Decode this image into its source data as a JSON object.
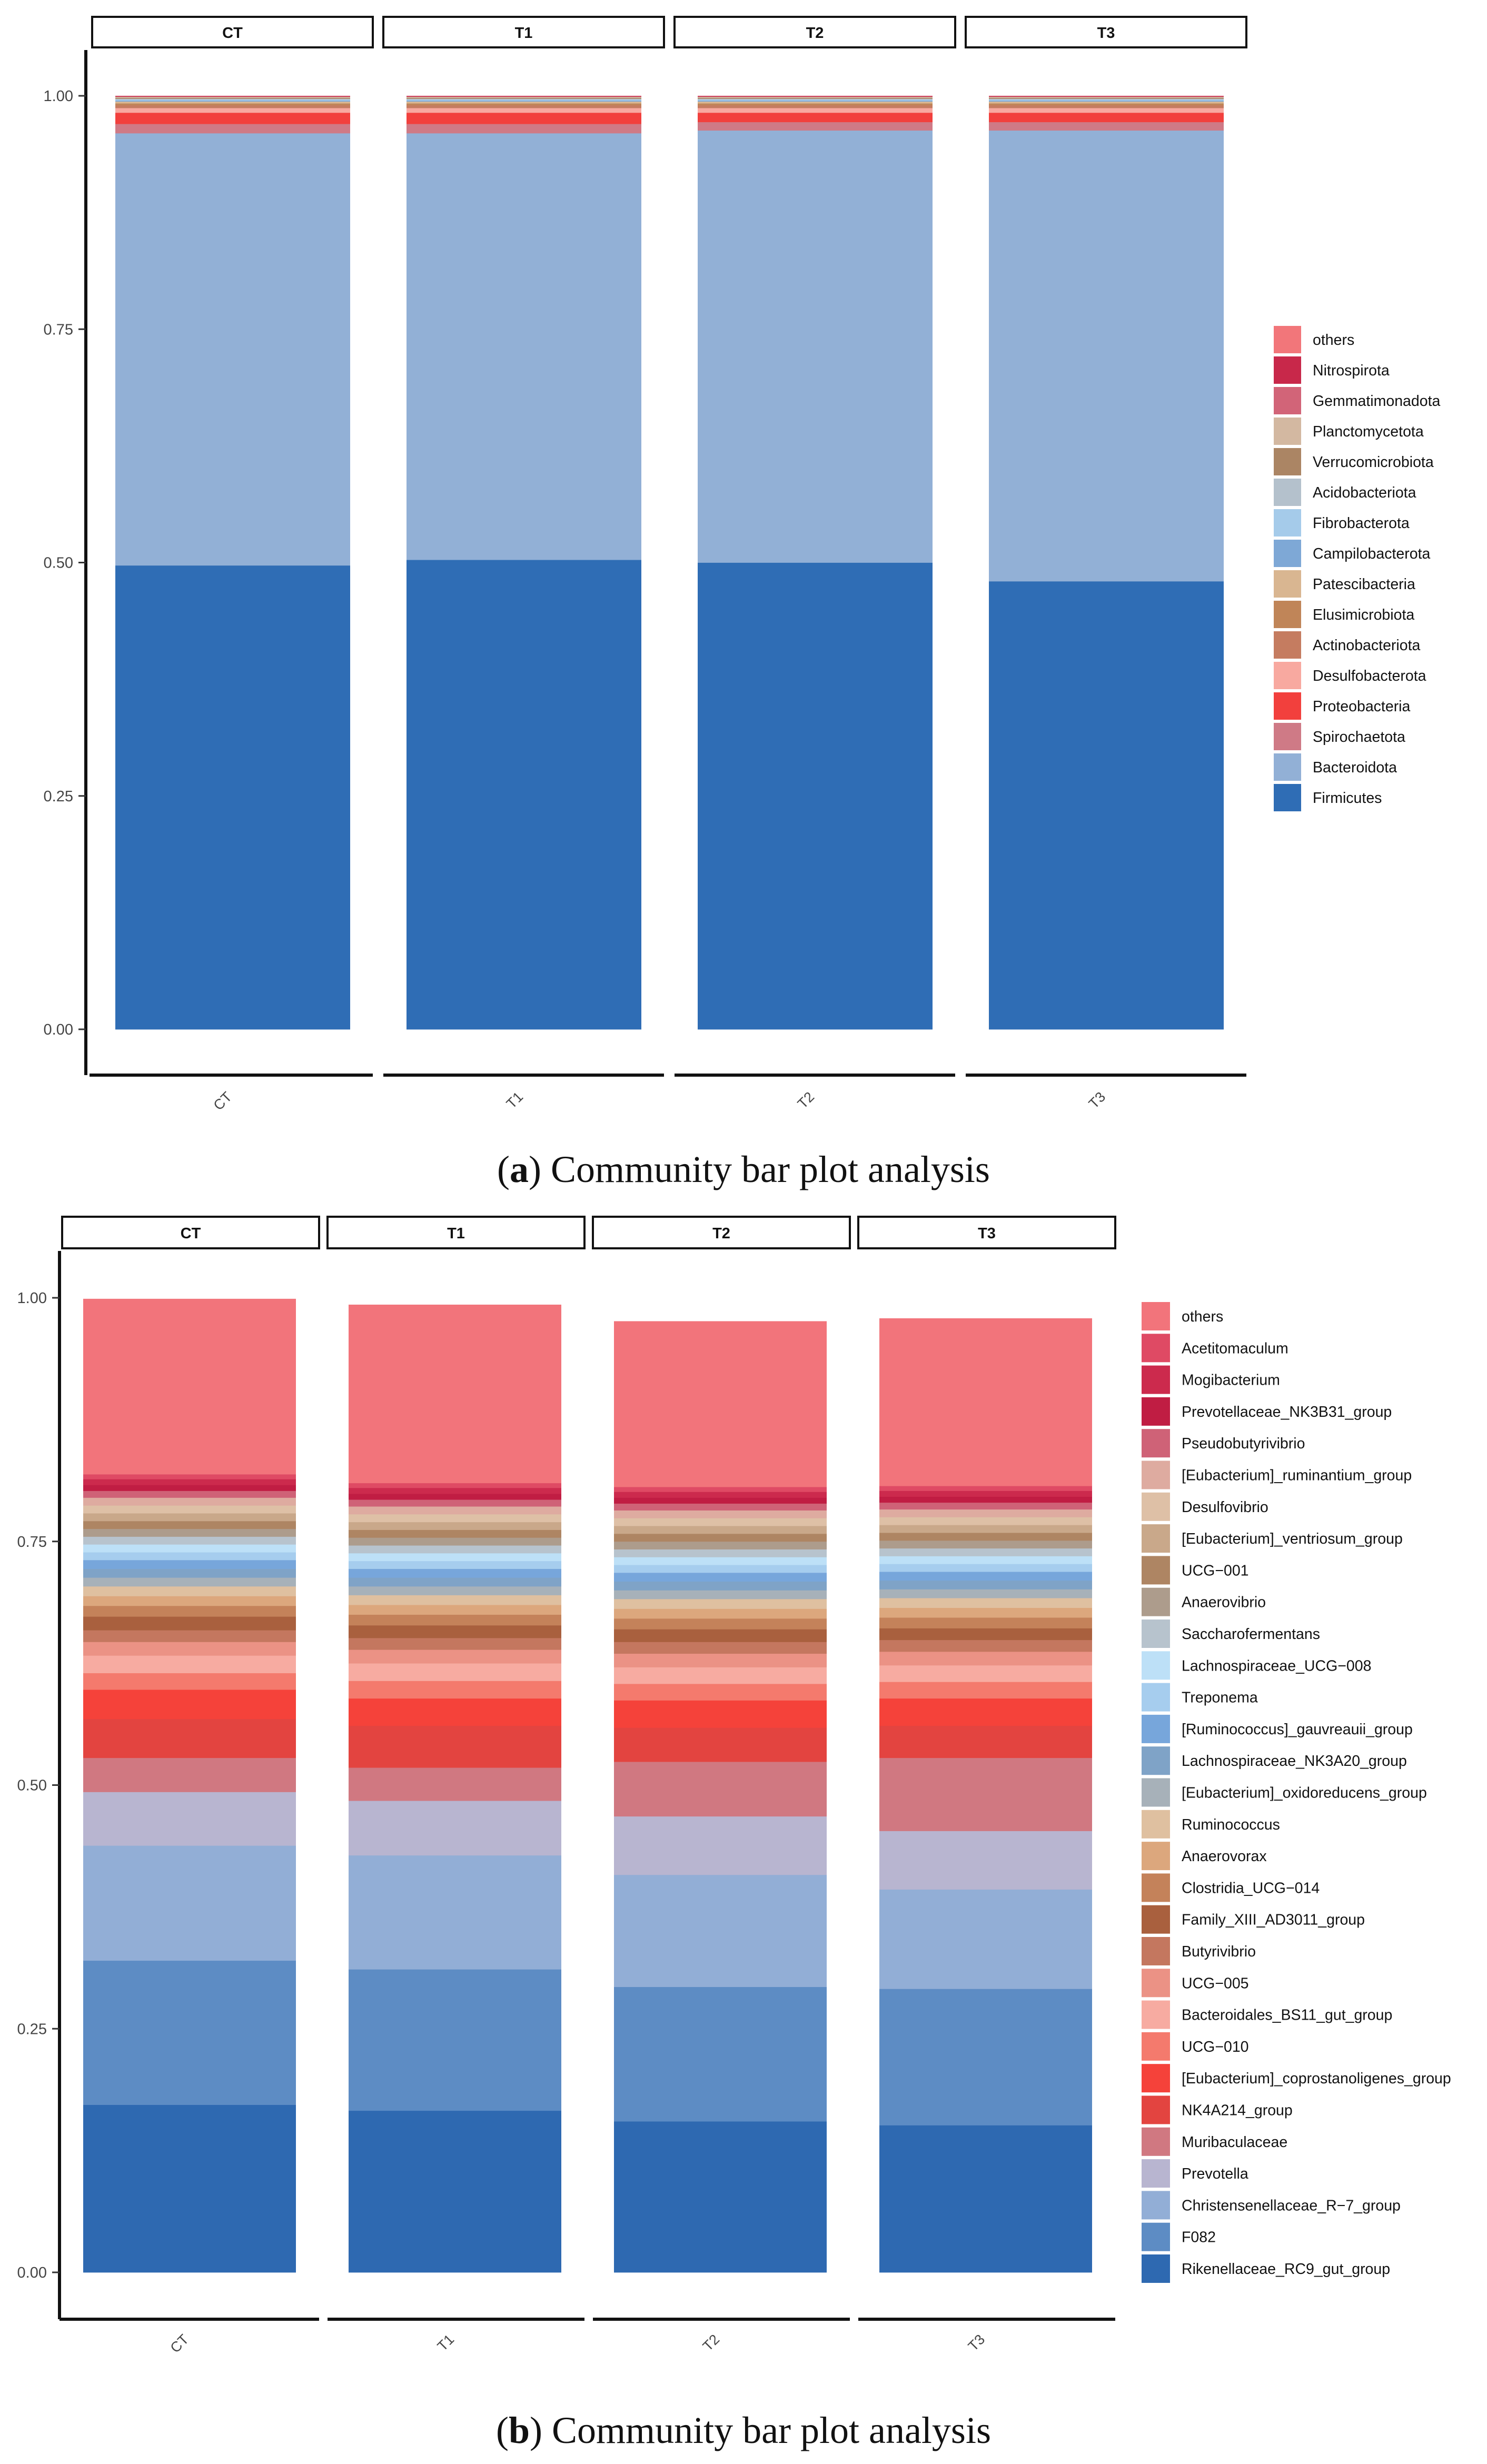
{
  "chart_data": [
    {
      "type": "bar",
      "stacked": true,
      "facets": [
        "CT",
        "T1",
        "T2",
        "T3"
      ],
      "categories": [
        "CT",
        "T1",
        "T2",
        "T3"
      ],
      "ylim": [
        0,
        1
      ],
      "yticks": [
        "0.00",
        "0.25",
        "0.50",
        "0.75",
        "1.00"
      ],
      "legend_position": "right",
      "caption_label": "a",
      "caption_text": " Community bar plot analysis",
      "series": [
        {
          "name": "Firmicutes",
          "color": "#2f6db5",
          "values": [
            0.497,
            0.503,
            0.5,
            0.48
          ]
        },
        {
          "name": "Bacteroidota",
          "color": "#92b0d6",
          "values": [
            0.463,
            0.457,
            0.463,
            0.483
          ]
        },
        {
          "name": "Spirochaetota",
          "color": "#cf7a86",
          "values": [
            0.01,
            0.01,
            0.009,
            0.009
          ]
        },
        {
          "name": "Proteobacteria",
          "color": "#f2403d",
          "values": [
            0.012,
            0.012,
            0.01,
            0.01
          ]
        },
        {
          "name": "Desulfobacterota",
          "color": "#f8a9a0",
          "values": [
            0.005,
            0.005,
            0.005,
            0.005
          ]
        },
        {
          "name": "Actinobacteriota",
          "color": "#c57c60",
          "values": [
            0.003,
            0.003,
            0.003,
            0.003
          ]
        },
        {
          "name": "Elusimicrobiota",
          "color": "#c08558",
          "values": [
            0.002,
            0.002,
            0.002,
            0.002
          ]
        },
        {
          "name": "Patescibacteria",
          "color": "#d9b691",
          "values": [
            0.002,
            0.002,
            0.002,
            0.002
          ]
        },
        {
          "name": "Campilobacterota",
          "color": "#7ea8d6",
          "values": [
            0.001,
            0.001,
            0.001,
            0.001
          ]
        },
        {
          "name": "Fibrobacterota",
          "color": "#a5cbea",
          "values": [
            0.001,
            0.001,
            0.001,
            0.001
          ]
        },
        {
          "name": "Acidobacteriota",
          "color": "#b4c1cc",
          "values": [
            0.001,
            0.001,
            0.001,
            0.001
          ]
        },
        {
          "name": "Verrucomicrobiota",
          "color": "#ab8564",
          "values": [
            0.001,
            0.001,
            0.001,
            0.001
          ]
        },
        {
          "name": "Planctomycetota",
          "color": "#d3b8a1",
          "values": [
            0.001,
            0.001,
            0.001,
            0.001
          ]
        },
        {
          "name": "Gemmatimonadota",
          "color": "#d26478",
          "values": [
            0.0005,
            0.0005,
            0.0005,
            0.0005
          ]
        },
        {
          "name": "Nitrospirota",
          "color": "#c8284a",
          "values": [
            0.0005,
            0.0005,
            0.0005,
            0.0005
          ]
        },
        {
          "name": "others",
          "color": "#f2767a",
          "values": [
            0.0,
            0.0,
            0.0,
            0.0
          ]
        }
      ]
    },
    {
      "type": "bar",
      "stacked": true,
      "facets": [
        "CT",
        "T1",
        "T2",
        "T3"
      ],
      "categories": [
        "CT",
        "T1",
        "T2",
        "T3"
      ],
      "ylim": [
        0,
        1
      ],
      "yticks": [
        "0.00",
        "0.25",
        "0.50",
        "0.75",
        "1.00"
      ],
      "legend_position": "right",
      "caption_label": "b",
      "caption_text": " Community bar plot analysis",
      "series": [
        {
          "name": "Rikenellaceae_RC9_gut_group",
          "color": "#2e69b1",
          "values": [
            0.172,
            0.166,
            0.155,
            0.151
          ]
        },
        {
          "name": "F082",
          "color": "#5d8cc4",
          "values": [
            0.148,
            0.145,
            0.138,
            0.14
          ]
        },
        {
          "name": "Christensenellaceae_R−7_group",
          "color": "#92aed6",
          "values": [
            0.118,
            0.117,
            0.115,
            0.102
          ]
        },
        {
          "name": "Prevotella",
          "color": "#b8b5d0",
          "values": [
            0.055,
            0.056,
            0.06,
            0.06
          ]
        },
        {
          "name": "Muribaculaceae",
          "color": "#d07881",
          "values": [
            0.035,
            0.034,
            0.056,
            0.075
          ]
        },
        {
          "name": "NK4A214_group",
          "color": "#e34440",
          "values": [
            0.04,
            0.043,
            0.035,
            0.033
          ]
        },
        {
          "name": "[Eubacterium]_coprostanoligenes_group",
          "color": "#f5423a",
          "values": [
            0.03,
            0.028,
            0.028,
            0.028
          ]
        },
        {
          "name": "UCG−010",
          "color": "#f47a6d",
          "values": [
            0.017,
            0.018,
            0.017,
            0.017
          ]
        },
        {
          "name": "Bacteroidales_BS11_gut_group",
          "color": "#f7aba1",
          "values": [
            0.018,
            0.018,
            0.017,
            0.017
          ]
        },
        {
          "name": "UCG−005",
          "color": "#eb9285",
          "values": [
            0.014,
            0.014,
            0.014,
            0.014
          ]
        },
        {
          "name": "Butyrivibrio",
          "color": "#c4775f",
          "values": [
            0.012,
            0.012,
            0.012,
            0.012
          ]
        },
        {
          "name": "Family_XIII_AD3011_group",
          "color": "#a9603e",
          "values": [
            0.014,
            0.013,
            0.013,
            0.012
          ]
        },
        {
          "name": "Clostridia_UCG−014",
          "color": "#c4825a",
          "values": [
            0.011,
            0.011,
            0.011,
            0.011
          ]
        },
        {
          "name": "Anaerovorax",
          "color": "#dca77d",
          "values": [
            0.01,
            0.01,
            0.01,
            0.01
          ]
        },
        {
          "name": "Ruminococcus",
          "color": "#dfc0a0",
          "values": [
            0.01,
            0.01,
            0.01,
            0.01
          ]
        },
        {
          "name": "[Eubacterium]_oxidoreducens_group",
          "color": "#a7b1b9",
          "values": [
            0.009,
            0.009,
            0.009,
            0.009
          ]
        },
        {
          "name": "Lachnospiraceae_NK3A20_group",
          "color": "#7fa3c7",
          "values": [
            0.009,
            0.009,
            0.009,
            0.009
          ]
        },
        {
          "name": "[Ruminococcus]_gauvreauii_group",
          "color": "#77a6db",
          "values": [
            0.009,
            0.009,
            0.009,
            0.009
          ]
        },
        {
          "name": "Treponema",
          "color": "#a6cdee",
          "values": [
            0.008,
            0.008,
            0.008,
            0.008
          ]
        },
        {
          "name": "Lachnospiraceae_UCG−008",
          "color": "#bde0f7",
          "values": [
            0.008,
            0.008,
            0.008,
            0.008
          ]
        },
        {
          "name": "Saccharofermentans",
          "color": "#b7c3cd",
          "values": [
            0.008,
            0.008,
            0.008,
            0.008
          ]
        },
        {
          "name": "Anaerovibrio",
          "color": "#ad9c8c",
          "values": [
            0.008,
            0.008,
            0.008,
            0.008
          ]
        },
        {
          "name": "UCG−001",
          "color": "#ae8563",
          "values": [
            0.008,
            0.008,
            0.008,
            0.008
          ]
        },
        {
          "name": "[Eubacterium]_ventriosum_group",
          "color": "#c9a88a",
          "values": [
            0.008,
            0.008,
            0.008,
            0.008
          ]
        },
        {
          "name": "Desulfovibrio",
          "color": "#dec0a6",
          "values": [
            0.008,
            0.008,
            0.008,
            0.008
          ]
        },
        {
          "name": "[Eubacterium]_ruminantium_group",
          "color": "#deaba0",
          "values": [
            0.008,
            0.008,
            0.008,
            0.008
          ]
        },
        {
          "name": "Pseudobutyrivibrio",
          "color": "#cf6277",
          "values": [
            0.007,
            0.007,
            0.007,
            0.007
          ]
        },
        {
          "name": "Prevotellaceae_NK3B31_group",
          "color": "#c01d43",
          "values": [
            0.006,
            0.006,
            0.006,
            0.006
          ]
        },
        {
          "name": "Mogibacterium",
          "color": "#cc2a4d",
          "values": [
            0.006,
            0.006,
            0.006,
            0.006
          ]
        },
        {
          "name": "Acetitomaculum",
          "color": "#df4a64",
          "values": [
            0.005,
            0.005,
            0.005,
            0.005
          ]
        },
        {
          "name": "others",
          "color": "#f2747b",
          "values": [
            0.18,
            0.183,
            0.17,
            0.172
          ]
        }
      ]
    }
  ]
}
